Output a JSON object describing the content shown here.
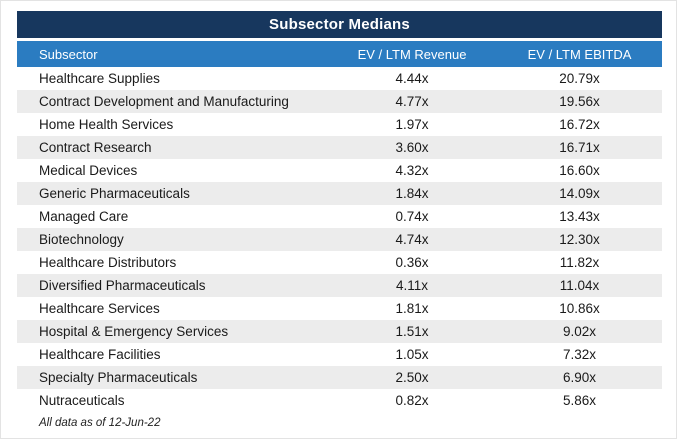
{
  "title": "Subsector Medians",
  "footnote": "All data as of 12-Jun-22",
  "colors": {
    "title_bg": "#17375e",
    "header_bg": "#2b7cc1",
    "row_alt_bg": "#ececec",
    "text": "#1a1a1a"
  },
  "chart_data": {
    "type": "table",
    "title": "Subsector Medians",
    "columns": [
      "Subsector",
      "EV / LTM Revenue",
      "EV / LTM EBITDA"
    ],
    "rows": [
      [
        "Healthcare Supplies",
        "4.44x",
        "20.79x"
      ],
      [
        "Contract Development and Manufacturing",
        "4.77x",
        "19.56x"
      ],
      [
        "Home Health Services",
        "1.97x",
        "16.72x"
      ],
      [
        "Contract Research",
        "3.60x",
        "16.71x"
      ],
      [
        "Medical Devices",
        "4.32x",
        "16.60x"
      ],
      [
        "Generic Pharmaceuticals",
        "1.84x",
        "14.09x"
      ],
      [
        "Managed Care",
        "0.74x",
        "13.43x"
      ],
      [
        "Biotechnology",
        "4.74x",
        "12.30x"
      ],
      [
        "Healthcare Distributors",
        "0.36x",
        "11.82x"
      ],
      [
        "Diversified Pharmaceuticals",
        "4.11x",
        "11.04x"
      ],
      [
        "Healthcare Services",
        "1.81x",
        "10.86x"
      ],
      [
        "Hospital & Emergency Services",
        "1.51x",
        "9.02x"
      ],
      [
        "Healthcare Facilities",
        "1.05x",
        "7.32x"
      ],
      [
        "Specialty Pharmaceuticals",
        "2.50x",
        "6.90x"
      ],
      [
        "Nutraceuticals",
        "0.82x",
        "5.86x"
      ]
    ],
    "footnote": "All data as of 12-Jun-22"
  }
}
